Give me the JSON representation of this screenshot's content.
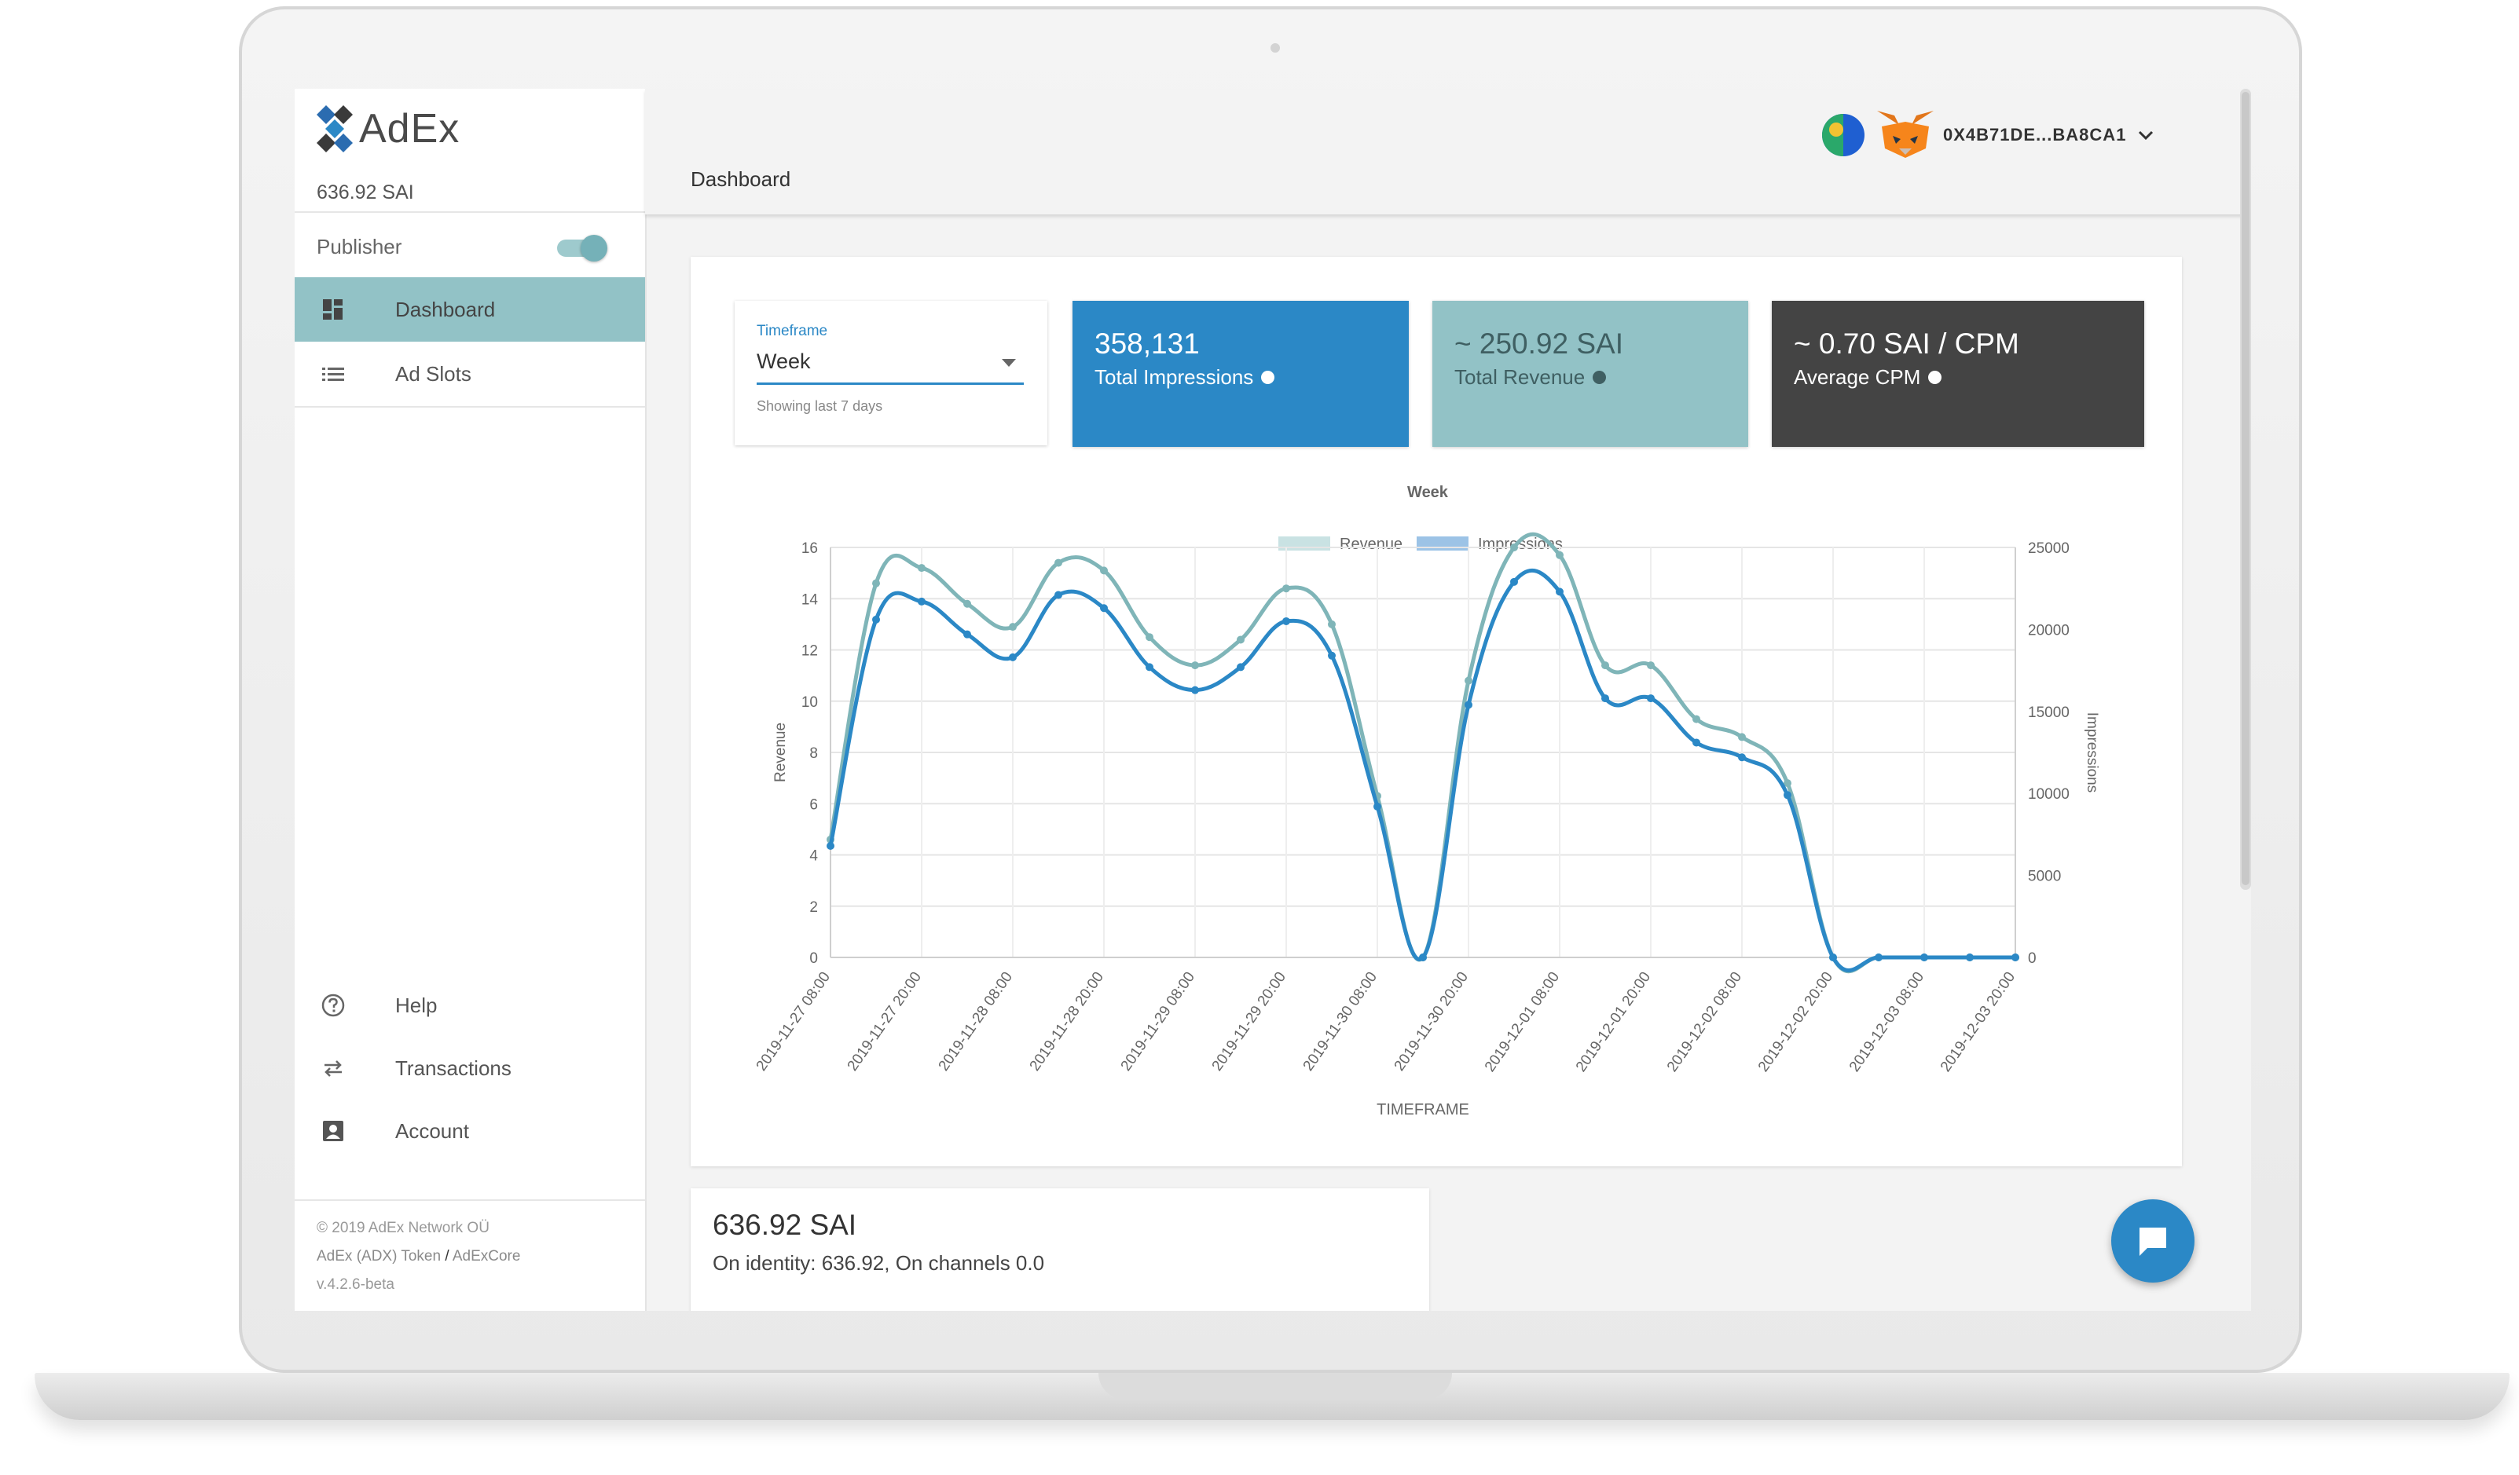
{
  "app": {
    "logo_text": "AdEx",
    "balance": "636.92 SAI"
  },
  "sidebar": {
    "publisher_label": "Publisher",
    "publisher_toggle_on": true,
    "items": [
      {
        "label": "Dashboard",
        "icon": "dashboard-icon",
        "active": true
      },
      {
        "label": "Ad Slots",
        "icon": "list-icon",
        "active": false
      }
    ],
    "bottom_items": [
      {
        "label": "Help",
        "icon": "help-icon"
      },
      {
        "label": "Transactions",
        "icon": "transactions-icon"
      },
      {
        "label": "Account",
        "icon": "account-icon"
      }
    ],
    "footer": {
      "copyright": "© 2019  AdEx Network OÜ",
      "token_link": "AdEx (ADX) Token",
      "separator": "/",
      "core_link": "AdExCore",
      "version": "v.4.2.6-beta"
    }
  },
  "header": {
    "title": "Dashboard",
    "address": "0X4B71DE...BA8CA1"
  },
  "timeframe": {
    "label": "Timeframe",
    "value": "Week",
    "helper": "Showing last 7 days"
  },
  "stats": [
    {
      "value": "358,131",
      "label": "Total Impressions",
      "color": "#2b88c6"
    },
    {
      "value": "~ 250.92 SAI",
      "label": "Total Revenue",
      "color": "#92c2c6"
    },
    {
      "value": "~ 0.70 SAI / CPM",
      "label": "Average CPM",
      "color": "#444444"
    }
  ],
  "chart_data": {
    "type": "line",
    "title": "Week",
    "xlabel": "TIMEFRAME",
    "ylabel": "Revenue",
    "y2label": "Impressions",
    "ylim": [
      0,
      16
    ],
    "y2lim": [
      0,
      25000
    ],
    "yticks": [
      0,
      2,
      4,
      6,
      8,
      10,
      12,
      14,
      16
    ],
    "y2ticks": [
      0,
      5000,
      10000,
      15000,
      20000,
      25000
    ],
    "xtick_labels": [
      "2019-11-27 08:00",
      "2019-11-27 20:00",
      "2019-11-28 08:00",
      "2019-11-28 20:00",
      "2019-11-29 08:00",
      "2019-11-29 20:00",
      "2019-11-30 08:00",
      "2019-11-30 20:00",
      "2019-12-01 08:00",
      "2019-12-01 20:00",
      "2019-12-02 08:00",
      "2019-12-02 20:00",
      "2019-12-03 08:00",
      "2019-12-03 20:00"
    ],
    "legend": "top",
    "series": [
      {
        "name": "Revenue",
        "axis": "left",
        "color": "#7fb5b8",
        "values": [
          4.6,
          14.6,
          15.2,
          13.8,
          12.9,
          15.4,
          15.1,
          12.5,
          11.4,
          12.4,
          14.4,
          13.0,
          6.3,
          0,
          10.8,
          16.0,
          15.7,
          11.4,
          11.4,
          9.3,
          8.6,
          6.8,
          0,
          0,
          0,
          0,
          0
        ]
      },
      {
        "name": "Impressions",
        "axis": "right",
        "color": "#2b88c6",
        "values": [
          6800,
          20600,
          21700,
          19700,
          18300,
          22100,
          21300,
          17700,
          16300,
          17700,
          20500,
          18400,
          9200,
          0,
          15400,
          22900,
          22300,
          15800,
          15800,
          13100,
          12200,
          9900,
          0,
          0,
          0,
          0,
          0
        ]
      }
    ]
  },
  "balance_card": {
    "value": "636.92 SAI",
    "detail": "On identity: 636.92, On channels 0.0"
  },
  "fab": {
    "icon": "chat-icon"
  }
}
